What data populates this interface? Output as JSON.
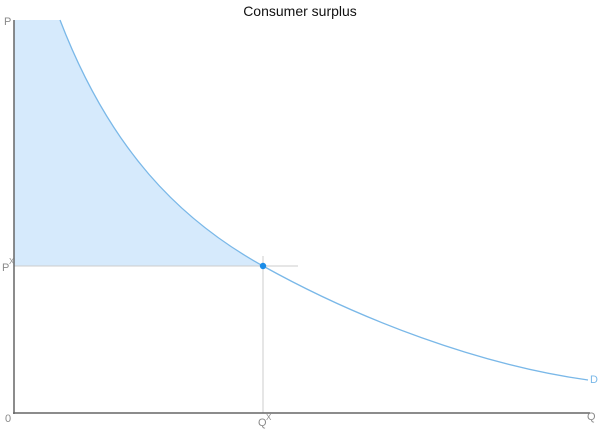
{
  "title": "Consumer surplus",
  "axes": {
    "y_label": "P",
    "x_label": "Q",
    "origin_label": "0"
  },
  "equilibrium": {
    "price_label": "P",
    "price_sup": "X",
    "quantity_label": "Q",
    "quantity_sup": "X"
  },
  "curve": {
    "label": "D"
  },
  "colors": {
    "curve": "#7ab8e8",
    "surplus_fill": "#d6eafc",
    "point": "#1a8ce8",
    "axis": "#666666",
    "guide": "#cccccc"
  }
}
